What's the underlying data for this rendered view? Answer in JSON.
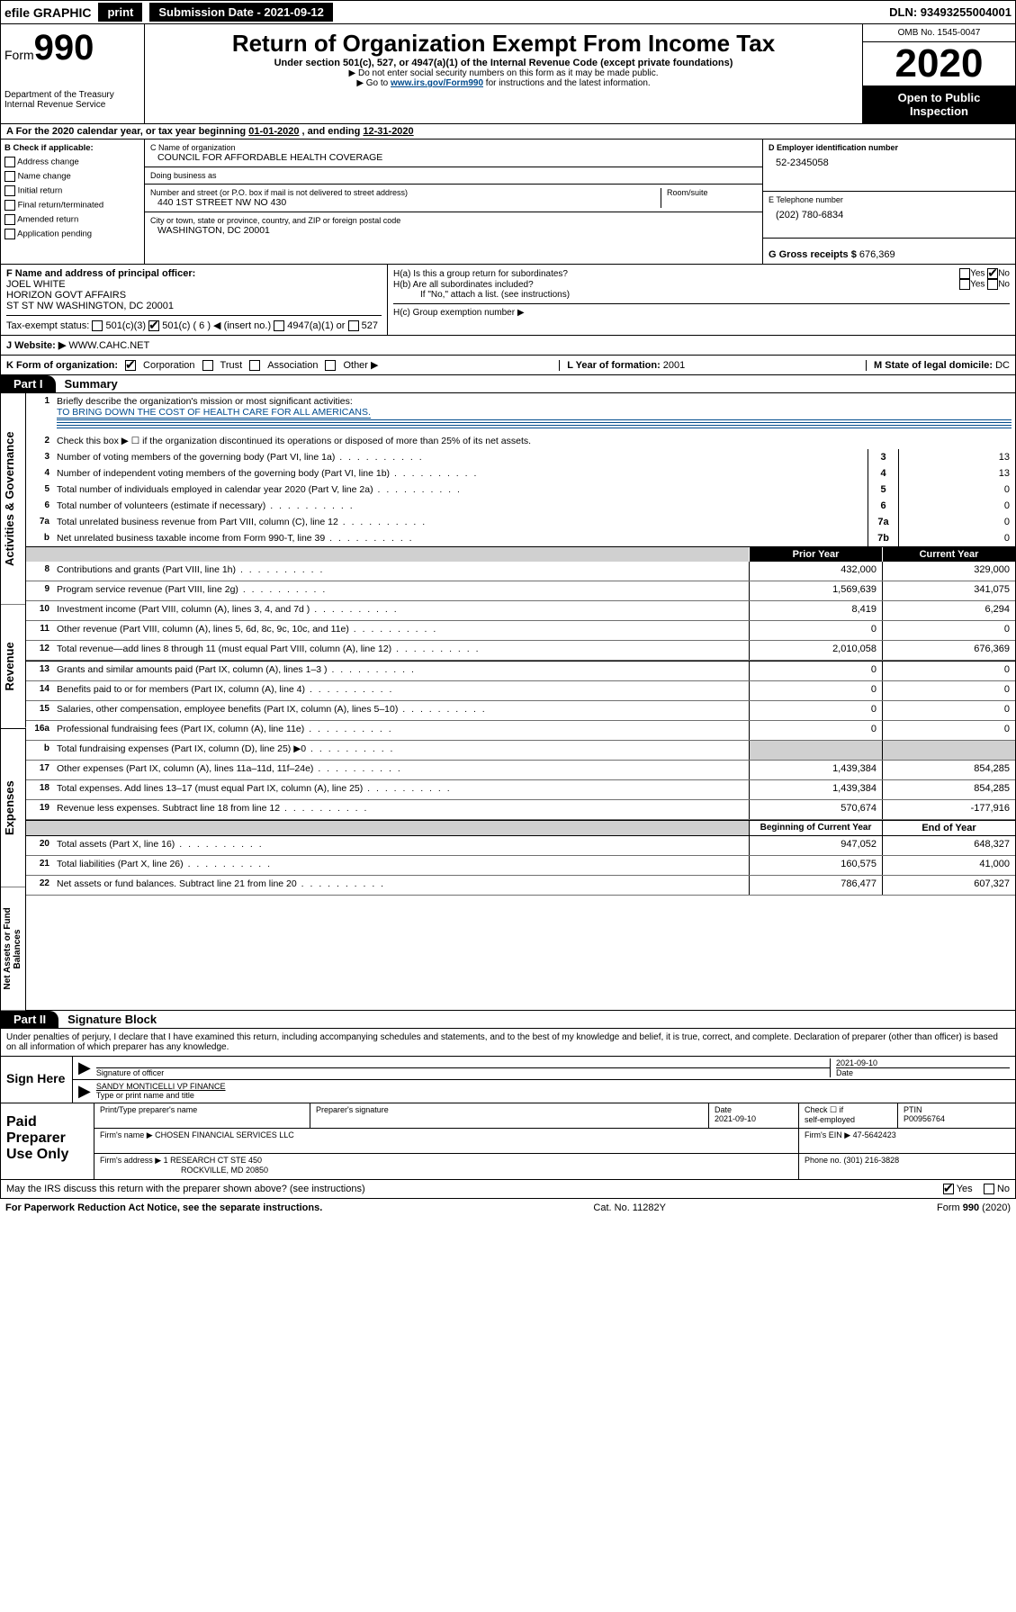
{
  "topbar": {
    "efile": "efile GRAPHIC",
    "print": "print",
    "sub_label": "Submission Date - 2021-09-12",
    "dln": "DLN: 93493255004001"
  },
  "header": {
    "form_prefix": "Form",
    "form_number": "990",
    "dept1": "Department of the Treasury",
    "dept2": "Internal Revenue Service",
    "title": "Return of Organization Exempt From Income Tax",
    "subtitle": "Under section 501(c), 527, or 4947(a)(1) of the Internal Revenue Code (except private foundations)",
    "note1": "▶ Do not enter social security numbers on this form as it may be made public.",
    "note2_a": "▶ Go to ",
    "note2_link": "www.irs.gov/Form990",
    "note2_b": " for instructions and the latest information.",
    "omb": "OMB No. 1545-0047",
    "year": "2020",
    "open_pub1": "Open to Public",
    "open_pub2": "Inspection"
  },
  "row_a": {
    "text_a": "A  For the 2020 calendar year, or tax year beginning ",
    "date1": "01-01-2020",
    "text_b": "   , and ending ",
    "date2": "12-31-2020"
  },
  "col_b": {
    "hdr": "B Check if applicable:",
    "items": [
      "Address change",
      "Name change",
      "Initial return",
      "Final return/terminated",
      "Amended return",
      "Application pending"
    ]
  },
  "col_c": {
    "name_lbl": "C Name of organization",
    "name": "COUNCIL FOR AFFORDABLE HEALTH COVERAGE",
    "dba_lbl": "Doing business as",
    "dba": "",
    "addr_lbl": "Number and street (or P.O. box if mail is not delivered to street address)",
    "room_lbl": "Room/suite",
    "addr": "440 1ST STREET NW NO 430",
    "city_lbl": "City or town, state or province, country, and ZIP or foreign postal code",
    "city": "WASHINGTON, DC  20001"
  },
  "col_d": {
    "ein_lbl": "D Employer identification number",
    "ein": "52-2345058",
    "tel_lbl": "E Telephone number",
    "tel": "(202) 780-6834",
    "gross_lbl": "G Gross receipts $ ",
    "gross": "676,369"
  },
  "row_f": {
    "lbl": "F  Name and address of principal officer:",
    "name": "JOEL WHITE",
    "addr1": "HORIZON GOVT AFFAIRS",
    "addr2": "ST ST NW WASHINGTON, DC  20001",
    "status_lbl": "Tax-exempt status:",
    "s1": "501(c)(3)",
    "s2": "501(c) ( 6 ) ◀ (insert no.)",
    "s3": "4947(a)(1) or",
    "s4": "527"
  },
  "row_h": {
    "h_a": "H(a)  Is this a group return for subordinates?",
    "h_b": "H(b)  Are all subordinates included?",
    "h_b2": "If \"No,\" attach a list. (see instructions)",
    "h_c": "H(c)  Group exemption number ▶",
    "yes": "Yes",
    "no": "No"
  },
  "row_j": {
    "lbl": "J  Website: ▶  ",
    "url": "WWW.CAHC.NET"
  },
  "row_k": {
    "lbl": "K Form of organization:",
    "o1": "Corporation",
    "o2": "Trust",
    "o3": "Association",
    "o4": "Other ▶",
    "l_lbl": "L Year of formation: ",
    "l_val": "2001",
    "m_lbl": "M State of legal domicile: ",
    "m_val": "DC"
  },
  "part1": {
    "hdr": "Part I",
    "title": "Summary",
    "side1": "Activities & Governance",
    "side2": "Revenue",
    "side3": "Expenses",
    "side4": "Net Assets or Fund Balances",
    "l1": "Briefly describe the organization's mission or most significant activities:",
    "l1v": "TO BRING DOWN THE COST OF HEALTH CARE FOR ALL AMERICANS.",
    "l2": "Check this box ▶ ☐  if the organization discontinued its operations or disposed of more than 25% of its net assets.",
    "lines": [
      {
        "n": "3",
        "t": "Number of voting members of the governing body (Part VI, line 1a)",
        "b": "3",
        "v": "13"
      },
      {
        "n": "4",
        "t": "Number of independent voting members of the governing body (Part VI, line 1b)",
        "b": "4",
        "v": "13"
      },
      {
        "n": "5",
        "t": "Total number of individuals employed in calendar year 2020 (Part V, line 2a)",
        "b": "5",
        "v": "0"
      },
      {
        "n": "6",
        "t": "Total number of volunteers (estimate if necessary)",
        "b": "6",
        "v": "0"
      },
      {
        "n": "7a",
        "t": "Total unrelated business revenue from Part VIII, column (C), line 12",
        "b": "7a",
        "v": "0"
      },
      {
        "n": "b",
        "t": "Net unrelated business taxable income from Form 990-T, line 39",
        "b": "7b",
        "v": "0"
      }
    ],
    "col_prior": "Prior Year",
    "col_curr": "Current Year",
    "rev": [
      {
        "n": "8",
        "t": "Contributions and grants (Part VIII, line 1h)",
        "p": "432,000",
        "c": "329,000"
      },
      {
        "n": "9",
        "t": "Program service revenue (Part VIII, line 2g)",
        "p": "1,569,639",
        "c": "341,075"
      },
      {
        "n": "10",
        "t": "Investment income (Part VIII, column (A), lines 3, 4, and 7d )",
        "p": "8,419",
        "c": "6,294"
      },
      {
        "n": "11",
        "t": "Other revenue (Part VIII, column (A), lines 5, 6d, 8c, 9c, 10c, and 11e)",
        "p": "0",
        "c": "0"
      },
      {
        "n": "12",
        "t": "Total revenue—add lines 8 through 11 (must equal Part VIII, column (A), line 12)",
        "p": "2,010,058",
        "c": "676,369"
      }
    ],
    "exp": [
      {
        "n": "13",
        "t": "Grants and similar amounts paid (Part IX, column (A), lines 1–3 )",
        "p": "0",
        "c": "0"
      },
      {
        "n": "14",
        "t": "Benefits paid to or for members (Part IX, column (A), line 4)",
        "p": "0",
        "c": "0"
      },
      {
        "n": "15",
        "t": "Salaries, other compensation, employee benefits (Part IX, column (A), lines 5–10)",
        "p": "0",
        "c": "0"
      },
      {
        "n": "16a",
        "t": "Professional fundraising fees (Part IX, column (A), line 11e)",
        "p": "0",
        "c": "0"
      },
      {
        "n": "b",
        "t": "Total fundraising expenses (Part IX, column (D), line 25) ▶0",
        "p": "",
        "c": "",
        "shade": true
      },
      {
        "n": "17",
        "t": "Other expenses (Part IX, column (A), lines 11a–11d, 11f–24e)",
        "p": "1,439,384",
        "c": "854,285"
      },
      {
        "n": "18",
        "t": "Total expenses. Add lines 13–17 (must equal Part IX, column (A), line 25)",
        "p": "1,439,384",
        "c": "854,285"
      },
      {
        "n": "19",
        "t": "Revenue less expenses. Subtract line 18 from line 12",
        "p": "570,674",
        "c": "-177,916"
      }
    ],
    "col_boy": "Beginning of Current Year",
    "col_eoy": "End of Year",
    "na": [
      {
        "n": "20",
        "t": "Total assets (Part X, line 16)",
        "p": "947,052",
        "c": "648,327"
      },
      {
        "n": "21",
        "t": "Total liabilities (Part X, line 26)",
        "p": "160,575",
        "c": "41,000"
      },
      {
        "n": "22",
        "t": "Net assets or fund balances. Subtract line 21 from line 20",
        "p": "786,477",
        "c": "607,327"
      }
    ]
  },
  "part2": {
    "hdr": "Part II",
    "title": "Signature Block",
    "decl": "Under penalties of perjury, I declare that I have examined this return, including accompanying schedules and statements, and to the best of my knowledge and belief, it is true, correct, and complete. Declaration of preparer (other than officer) is based on all information of which preparer has any knowledge.",
    "sign": "Sign Here",
    "sig_lbl": "Signature of officer",
    "sig_date": "2021-09-10",
    "date_lbl": "Date",
    "name": "SANDY MONTICELLI VP FINANCE",
    "name_lbl": "Type or print name and title",
    "paid": "Paid Preparer Use Only",
    "ph1": "Print/Type preparer's name",
    "ph2": "Preparer's signature",
    "ph3": "Date",
    "ph3v": "2021-09-10",
    "ph4a": "Check ☐ if",
    "ph4b": "self-employed",
    "ph5": "PTIN",
    "ph5v": "P00956764",
    "firm_lbl": "Firm's name    ▶",
    "firm": "CHOSEN FINANCIAL SERVICES LLC",
    "ein_lbl": "Firm's EIN ▶",
    "ein": "47-5642423",
    "addr_lbl": "Firm's address ▶",
    "addr1": "1 RESEARCH CT STE 450",
    "addr2": "ROCKVILLE, MD  20850",
    "phone_lbl": "Phone no. ",
    "phone": "(301) 216-3828",
    "discuss": "May the IRS discuss this return with the preparer shown above? (see instructions)"
  },
  "footer": {
    "pra": "For Paperwork Reduction Act Notice, see the separate instructions.",
    "cat": "Cat. No. 11282Y",
    "form": "Form 990 (2020)"
  }
}
